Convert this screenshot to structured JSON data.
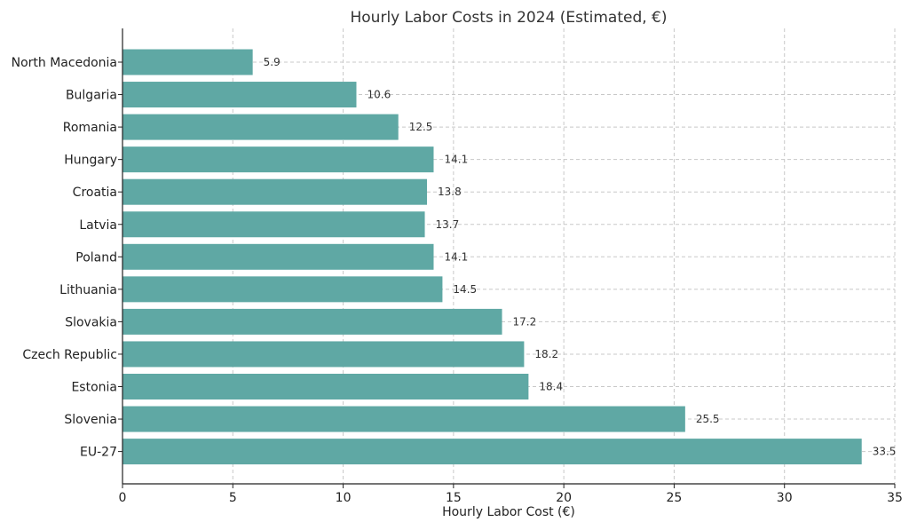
{
  "chart_data": {
    "type": "bar",
    "orientation": "horizontal",
    "title": "Hourly Labor Costs in 2024 (Estimated, €)",
    "xlabel": "Hourly Labor Cost (€)",
    "ylabel": "",
    "categories": [
      "North Macedonia",
      "Bulgaria",
      "Romania",
      "Hungary",
      "Croatia",
      "Latvia",
      "Poland",
      "Lithuania",
      "Slovakia",
      "Czech Republic",
      "Estonia",
      "Slovenia",
      "EU-27"
    ],
    "values": [
      5.9,
      10.6,
      12.5,
      14.1,
      13.8,
      13.7,
      14.1,
      14.5,
      17.2,
      18.2,
      18.4,
      25.5,
      33.5
    ],
    "value_labels": [
      "5.9",
      "10.6",
      "12.5",
      "14.1",
      "13.8",
      "13.7",
      "14.1",
      "14.5",
      "17.2",
      "18.2",
      "18.4",
      "25.5",
      "33.5"
    ],
    "xlim": [
      0,
      35
    ],
    "xticks": [
      0,
      5,
      10,
      15,
      20,
      25,
      30,
      35
    ],
    "xtick_labels": [
      "0",
      "5",
      "10",
      "15",
      "20",
      "25",
      "30",
      "35"
    ],
    "grid": true,
    "bar_color": "#5fa8a4"
  }
}
